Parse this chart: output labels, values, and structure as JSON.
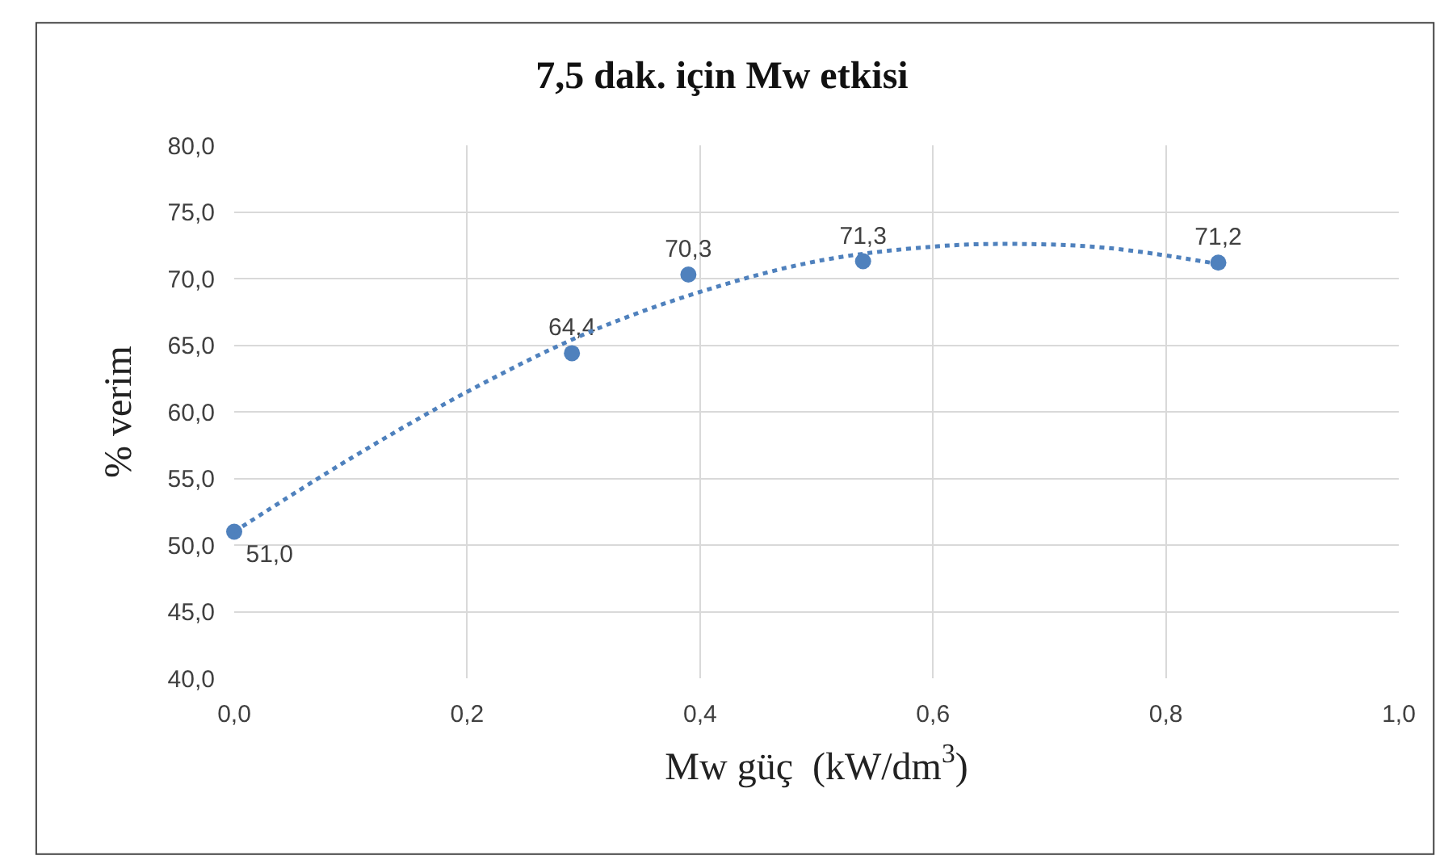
{
  "chart_data": {
    "type": "scatter",
    "title": "7,5 dak. için Mw etkisi",
    "xlabel": "Mw güç  (kW/dm$^{3}$)",
    "ylabel": "% verim",
    "series": [
      {
        "color": "#4f81bd",
        "x": [
          0.0,
          0.29,
          0.39,
          0.54,
          0.845
        ],
        "values": [
          51.0,
          64.4,
          70.3,
          71.3,
          71.2
        ],
        "value_labels": [
          "51,0",
          "64,4",
          "70,3",
          "71,3",
          "71,2"
        ],
        "marker": "circle"
      },
      {
        "type": "line",
        "color": "#4f81bd",
        "line_style": "dotted",
        "marker": "none",
        "x": [
          0.0,
          0.1,
          0.2,
          0.3,
          0.4,
          0.5,
          0.6,
          0.67,
          0.75,
          0.845
        ],
        "values": [
          51.0,
          56.5,
          61.5,
          65.8,
          69.0,
          71.3,
          72.4,
          72.6,
          72.3,
          71.1
        ]
      }
    ],
    "xlim": [
      0,
      1
    ],
    "xticks": [
      {
        "value": 0,
        "label": "0,0"
      },
      {
        "value": 0.2,
        "label": "0,2"
      },
      {
        "value": 0.4,
        "label": "0,4"
      },
      {
        "value": 0.6,
        "label": "0,6"
      },
      {
        "value": 0.8,
        "label": "0,8"
      },
      {
        "value": 1,
        "label": "1,0"
      }
    ],
    "ylim": [
      40,
      80
    ],
    "yticks": [
      {
        "value": 40,
        "label": "40,0"
      },
      {
        "value": 45,
        "label": "45,0"
      },
      {
        "value": 50,
        "label": "50,0"
      },
      {
        "value": 55,
        "label": "55,0"
      },
      {
        "value": 60,
        "label": "60,0"
      },
      {
        "value": 65,
        "label": "65,0"
      },
      {
        "value": 70,
        "label": "70,0"
      },
      {
        "value": 75,
        "label": "75,0"
      },
      {
        "value": 80,
        "label": "80,0"
      }
    ],
    "grid": true
  }
}
